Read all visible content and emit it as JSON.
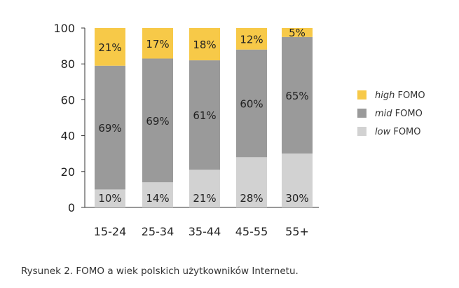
{
  "chart_data": {
    "type": "bar",
    "stacked": true,
    "percent": true,
    "categories": [
      "15-24",
      "25-34",
      "35-44",
      "45-55",
      "55+"
    ],
    "series": [
      {
        "name": "low",
        "suffix": "FOMO",
        "values": [
          10,
          14,
          21,
          28,
          30
        ],
        "color": "#d2d2d2"
      },
      {
        "name": "mid",
        "suffix": "FOMO",
        "values": [
          69,
          69,
          61,
          60,
          65
        ],
        "color": "#9a9a9a"
      },
      {
        "name": "high",
        "suffix": "FOMO",
        "values": [
          21,
          17,
          18,
          12,
          5
        ],
        "color": "#f7c948"
      }
    ],
    "legend_order": [
      "high",
      "mid",
      "low"
    ],
    "legend_position": "right",
    "ylim": [
      0,
      100
    ],
    "yticks": [
      0,
      20,
      40,
      60,
      80,
      100
    ],
    "title": "",
    "xlabel": "",
    "ylabel": ""
  },
  "caption": "Rysunek 2. FOMO a wiek polskich użytkowników Internetu."
}
